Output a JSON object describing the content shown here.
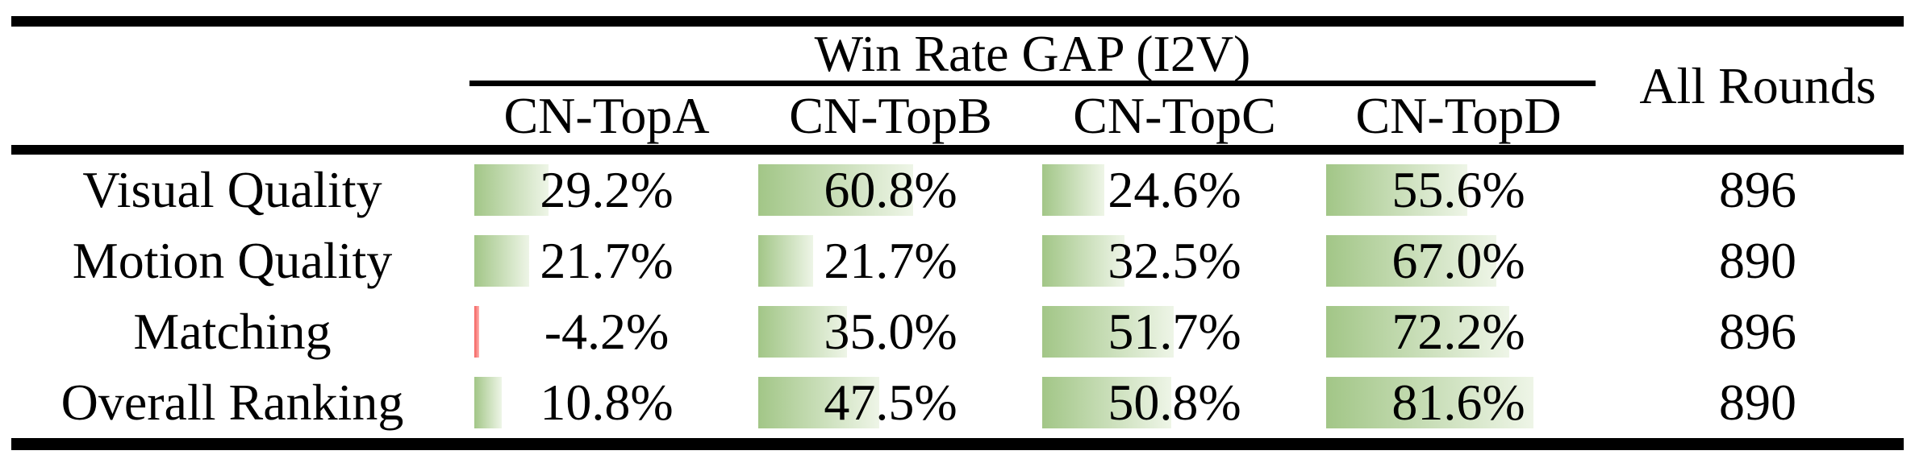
{
  "table": {
    "group_header": "Win Rate GAP (I2V)",
    "rounds_header": "All Rounds",
    "columns": [
      "CN-TopA",
      "CN-TopB",
      "CN-TopC",
      "CN-TopD"
    ],
    "rows": [
      {
        "label": "Visual Quality",
        "values": [
          29.2,
          60.8,
          24.6,
          55.6
        ],
        "displays": [
          "29.2%",
          "60.8%",
          "24.6%",
          "55.6%"
        ],
        "rounds": "896"
      },
      {
        "label": "Motion Quality",
        "values": [
          21.7,
          21.7,
          32.5,
          67.0
        ],
        "displays": [
          "21.7%",
          "21.7%",
          "32.5%",
          "67.0%"
        ],
        "rounds": "890"
      },
      {
        "label": "Matching",
        "values": [
          -4.2,
          35.0,
          51.7,
          72.2
        ],
        "displays": [
          "-4.2%",
          "35.0%",
          "51.7%",
          "72.2%"
        ],
        "rounds": "896"
      },
      {
        "label": "Overall Ranking",
        "values": [
          10.8,
          47.5,
          50.8,
          81.6
        ],
        "displays": [
          "10.8%",
          "47.5%",
          "50.8%",
          "81.6%"
        ],
        "rounds": "890"
      }
    ],
    "colors": {
      "bar_positive_left": "#a2c687",
      "bar_positive_right": "#eef5e7",
      "bar_negative": "#f4625f",
      "rule": "#000000",
      "text": "#000000",
      "background": "#ffffff"
    }
  },
  "chart_data": {
    "type": "table",
    "title": "Win Rate GAP (I2V)",
    "columns": [
      "CN-TopA",
      "CN-TopB",
      "CN-TopC",
      "CN-TopD",
      "All Rounds"
    ],
    "row_labels": [
      "Visual Quality",
      "Motion Quality",
      "Matching",
      "Overall Ranking"
    ],
    "series": [
      {
        "name": "Visual Quality",
        "win_rate_gap_pct": [
          29.2,
          60.8,
          24.6,
          55.6
        ],
        "all_rounds": 896
      },
      {
        "name": "Motion Quality",
        "win_rate_gap_pct": [
          21.7,
          21.7,
          32.5,
          67.0
        ],
        "all_rounds": 890
      },
      {
        "name": "Matching",
        "win_rate_gap_pct": [
          -4.2,
          35.0,
          51.7,
          72.2
        ],
        "all_rounds": 896
      },
      {
        "name": "Overall Ranking",
        "win_rate_gap_pct": [
          10.8,
          47.5,
          50.8,
          81.6
        ],
        "all_rounds": 890
      }
    ],
    "bar_style": "in-cell gradient data bars, green for positive, thin red for negative, width proportional to value (100% ≈ full column width)"
  }
}
